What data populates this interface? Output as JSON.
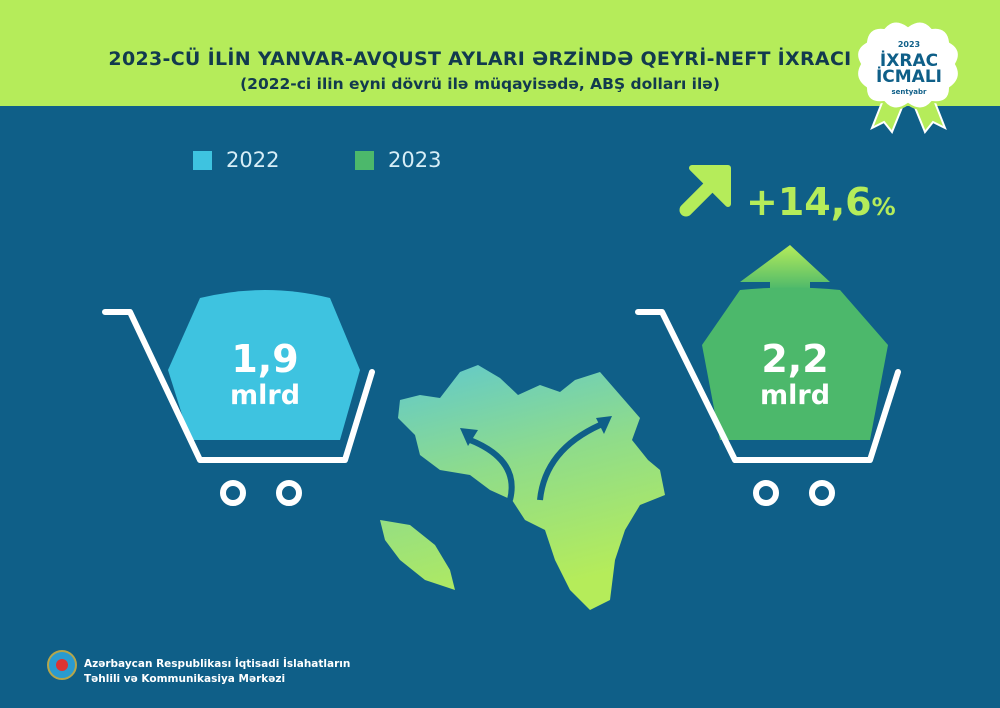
{
  "header": {
    "title": "2023-CÜ İLİN YANVAR-AVQUST AYLARI ƏRZİNDƏ QEYRİ-NEFT İXRACI",
    "subtitle": "(2022-ci ilin eyni dövrü ilə müqayisədə, ABŞ dolları ilə)"
  },
  "badge": {
    "year": "2023",
    "line1": "İXRAC",
    "line2": "İCMALI",
    "month": "sentyabr"
  },
  "colors": {
    "header": "#b5ec5a",
    "background": "#0f5f88",
    "series_2022": "#3ec3e0",
    "series_2023": "#4cb86b",
    "accent": "#b5ec5a"
  },
  "chart_data": {
    "type": "bar",
    "categories": [
      "2022",
      "2023"
    ],
    "values": [
      1.9,
      2.2
    ],
    "labels": [
      "1,9",
      "2,2"
    ],
    "unit": "mlrd",
    "legend": [
      "2022",
      "2023"
    ],
    "change": "+14,6",
    "change_unit": "%"
  },
  "footer": {
    "line1": "Azərbaycan Respublikası İqtisadi İslahatların",
    "line2": "Təhlili və Kommunikasiya Mərkəzi"
  }
}
